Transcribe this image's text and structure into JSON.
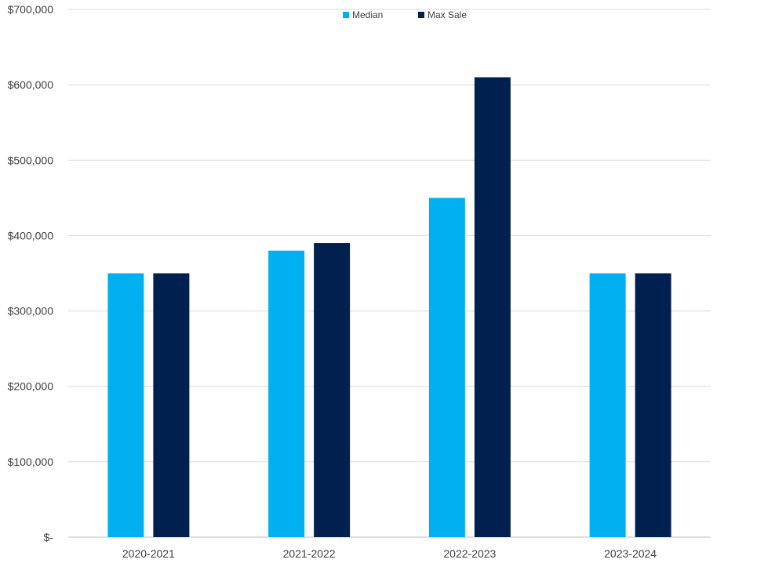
{
  "chart_data": {
    "type": "bar",
    "title": "",
    "xlabel": "",
    "ylabel": "",
    "categories": [
      "2020-2021",
      "2021-2022",
      "2022-2023",
      "2023-2024"
    ],
    "series": [
      {
        "name": "Median",
        "values": [
          350000,
          380000,
          450000,
          350000
        ]
      },
      {
        "name": "Max Sale",
        "values": [
          350000,
          390000,
          610000,
          350000
        ]
      }
    ],
    "ylim": [
      0,
      700000
    ],
    "yticks": [
      0,
      100000,
      200000,
      300000,
      400000,
      500000,
      600000,
      700000
    ],
    "ytick_labels": [
      "$-",
      "$100,000",
      "$200,000",
      "$300,000",
      "$400,000",
      "$500,000",
      "$600,000",
      "$700,000"
    ],
    "grid": true,
    "legend_position": "top-center",
    "colors": {
      "Median": "#00B0F0",
      "Max Sale": "#002050",
      "gridline": "#D9D9D9",
      "axis_text": "#404040"
    }
  }
}
